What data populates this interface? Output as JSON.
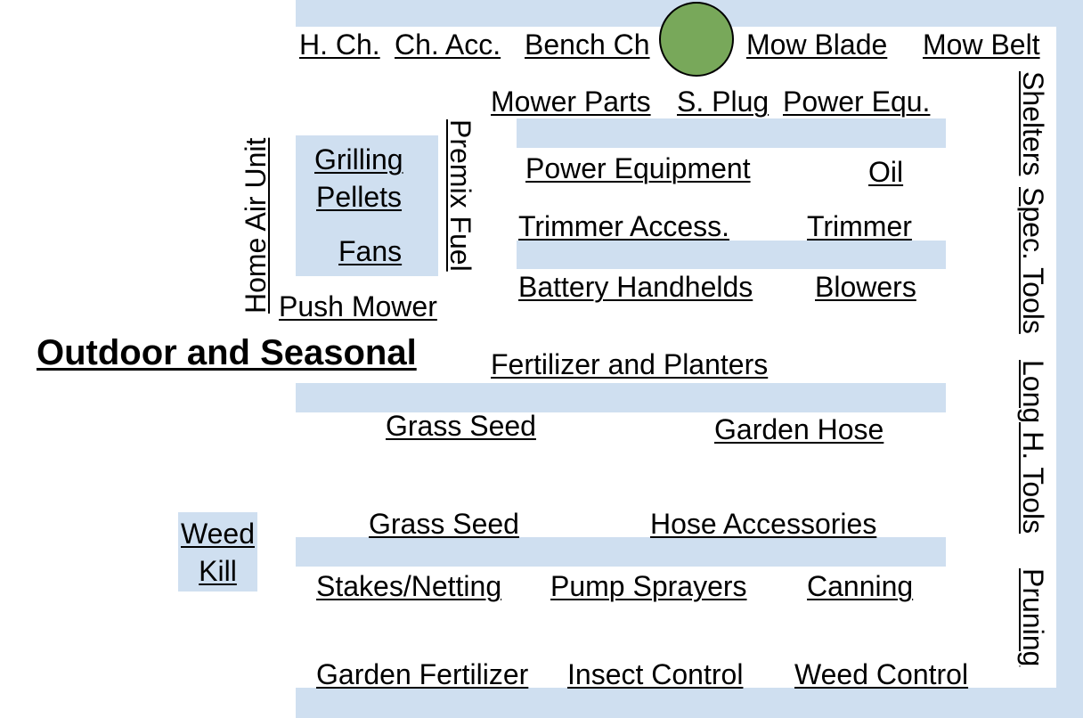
{
  "title": "Outdoor and Seasonal",
  "colors": {
    "shelf": "#cfdff0",
    "marker": "#78a85a"
  },
  "marker": {
    "icon": "location-marker-icon"
  },
  "top_row": {
    "h_ch": "H. Ch.",
    "ch_acc": "Ch. Acc.",
    "bench_ch": "Bench Ch",
    "mow_blade": "Mow Blade",
    "mow_belt": "Mow Belt"
  },
  "mower_row": {
    "mower_parts": "Mower Parts",
    "s_plug": "S. Plug",
    "power_equ": "Power Equ."
  },
  "right_wall": {
    "shelters": "Shelters",
    "spec_tools": "Spec. Tools",
    "long_h_tools": "Long H. Tools",
    "pruning": "Pruning"
  },
  "island": {
    "home_air_unit": "Home Air Unit",
    "grilling": "Grilling",
    "pellets": "Pellets",
    "fans": "Fans",
    "premix_fuel": "Premix Fuel",
    "push_mower": "Push Mower"
  },
  "aisle1": {
    "power_equipment": "Power Equipment",
    "oil": "Oil",
    "trimmer_access": "Trimmer Access.",
    "trimmer": "Trimmer",
    "battery_handhelds": "Battery Handhelds",
    "blowers": "Blowers"
  },
  "aisle2": {
    "fertilizer_planters": "Fertilizer and Planters",
    "grass_seed_1": "Grass Seed",
    "garden_hose": "Garden Hose",
    "grass_seed_2": "Grass Seed",
    "hose_accessories": "Hose Accessories"
  },
  "weed_kill": {
    "line1": "Weed",
    "line2": "Kill"
  },
  "aisle3": {
    "stakes_netting": "Stakes/Netting",
    "pump_sprayers": "Pump Sprayers",
    "canning": "Canning",
    "garden_fertilizer": "Garden Fertilizer",
    "insect_control": "Insect Control",
    "weed_control": "Weed Control"
  }
}
